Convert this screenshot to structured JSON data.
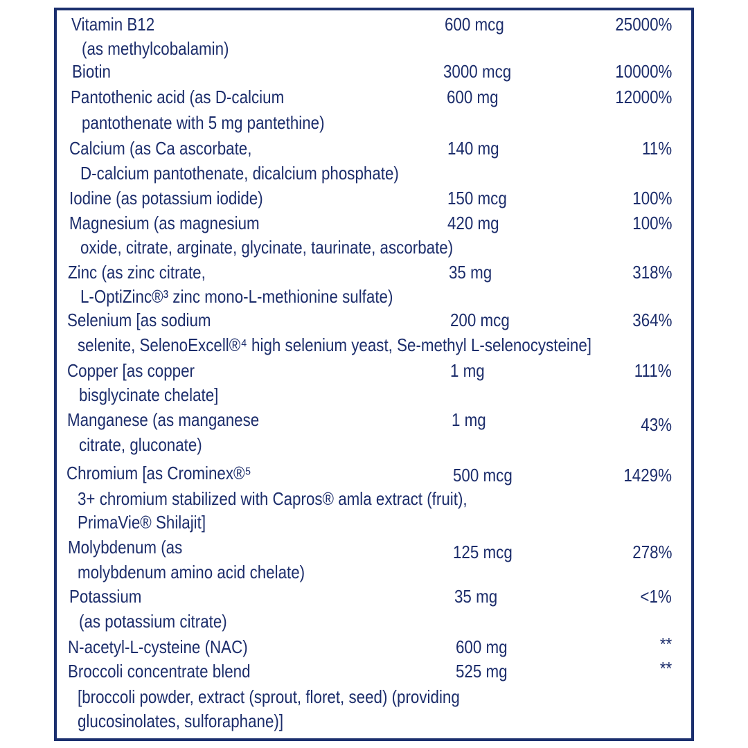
{
  "colors": {
    "border": "#1b2f6e",
    "text": "#1c2d6b"
  },
  "rows": [
    {
      "lines": [
        "Vitamin B12",
        "(as methylcobalamin)"
      ],
      "amount": "600 mcg",
      "dv": "25000%"
    },
    {
      "lines": [
        "Biotin"
      ],
      "amount": "3000 mcg",
      "dv": "10000%"
    },
    {
      "lines": [
        "Pantothenic acid (as D-calcium",
        "pantothenate with 5 mg pantethine)"
      ],
      "amount": "600 mg",
      "dv": "12000%"
    },
    {
      "lines": [
        "Calcium (as Ca ascorbate,",
        "D-calcium pantothenate, dicalcium phosphate)"
      ],
      "amount": "140 mg",
      "dv": "11%"
    },
    {
      "lines": [
        "Iodine (as potassium iodide)"
      ],
      "amount": "150 mcg",
      "dv": "100%"
    },
    {
      "lines": [
        "Magnesium (as magnesium",
        "oxide, citrate, arginate, glycinate, taurinate, ascorbate)"
      ],
      "amount": "420 mg",
      "dv": "100%"
    },
    {
      "lines": [
        "Zinc (as zinc citrate,",
        "L-OptiZinc®³ zinc mono-L-methionine sulfate)"
      ],
      "amount": "35 mg",
      "dv": "318%"
    },
    {
      "lines": [
        "Selenium [as sodium",
        "selenite, SelenoExcell®⁴ high selenium yeast, Se-methyl L-selenocysteine]"
      ],
      "amount": "200 mcg",
      "dv": "364%"
    },
    {
      "lines": [
        "Copper [as copper",
        "bisglycinate chelate]"
      ],
      "amount": "1 mg",
      "dv": "111%"
    },
    {
      "lines": [
        "Manganese (as manganese",
        "citrate, gluconate)"
      ],
      "amount": "1 mg",
      "dv": "43%"
    },
    {
      "lines": [
        "Chromium [as Crominex®⁵",
        "3+ chromium stabilized with Capros® amla extract (fruit),",
        "PrimaVie® Shilajit]"
      ],
      "amount": "500 mcg",
      "dv": "1429%"
    },
    {
      "lines": [
        "Molybdenum (as",
        "molybdenum amino acid chelate)"
      ],
      "amount": "125 mcg",
      "dv": "278%"
    },
    {
      "lines": [
        "Potassium",
        "(as potassium citrate)"
      ],
      "amount": "35 mg",
      "dv": "<1%"
    },
    {
      "lines": [
        "N-acetyl-L-cysteine (NAC)"
      ],
      "amount": "600 mg",
      "dv": "**"
    },
    {
      "lines": [
        "Broccoli concentrate blend",
        "[broccoli powder, extract (sprout, floret, seed) (providing",
        "glucosinolates, sulforaphane)]"
      ],
      "amount": "525 mg",
      "dv": "**"
    }
  ]
}
